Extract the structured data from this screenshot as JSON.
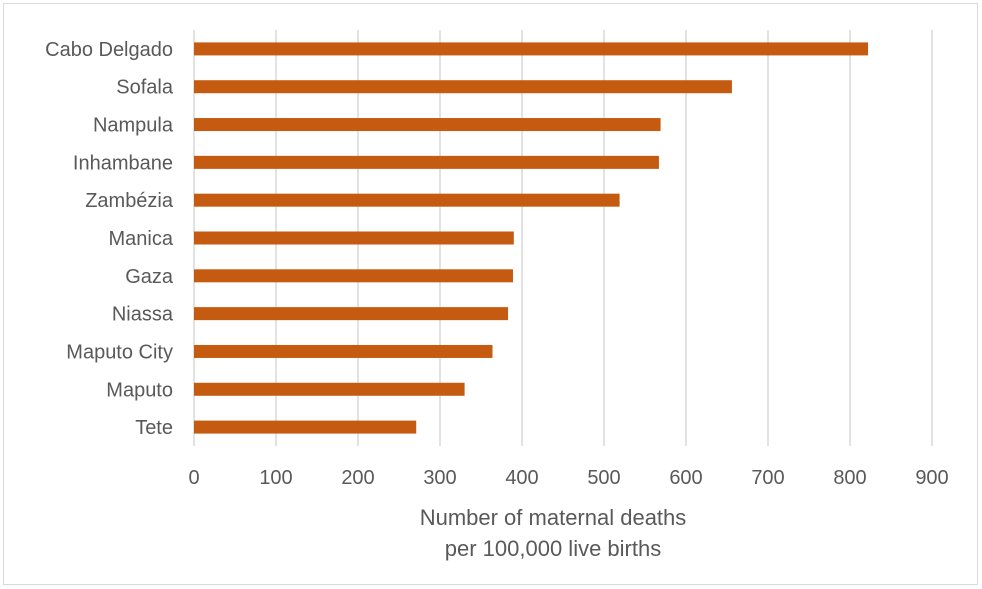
{
  "chart_data": {
    "type": "bar",
    "orientation": "horizontal",
    "categories": [
      "Cabo Delgado",
      "Sofala",
      "Nampula",
      "Inhambane",
      "Zambézia",
      "Manica",
      "Gaza",
      "Niassa",
      "Maputo City",
      "Maputo",
      "Tete"
    ],
    "values": [
      822,
      656,
      569,
      567,
      519,
      390,
      389,
      383,
      364,
      330,
      271
    ],
    "title": "",
    "xlabel": [
      "Number of maternal deaths",
      "per 100,000 live births"
    ],
    "ylabel": "",
    "xlim": [
      0,
      900
    ],
    "x_ticks": [
      "0",
      "100",
      "200",
      "300",
      "400",
      "500",
      "600",
      "700",
      "800",
      "900"
    ],
    "grid": "vertical",
    "legend": "none",
    "bar_color": "#c55a11",
    "grid_color": "#d9d9d9",
    "text_color": "#595959"
  }
}
